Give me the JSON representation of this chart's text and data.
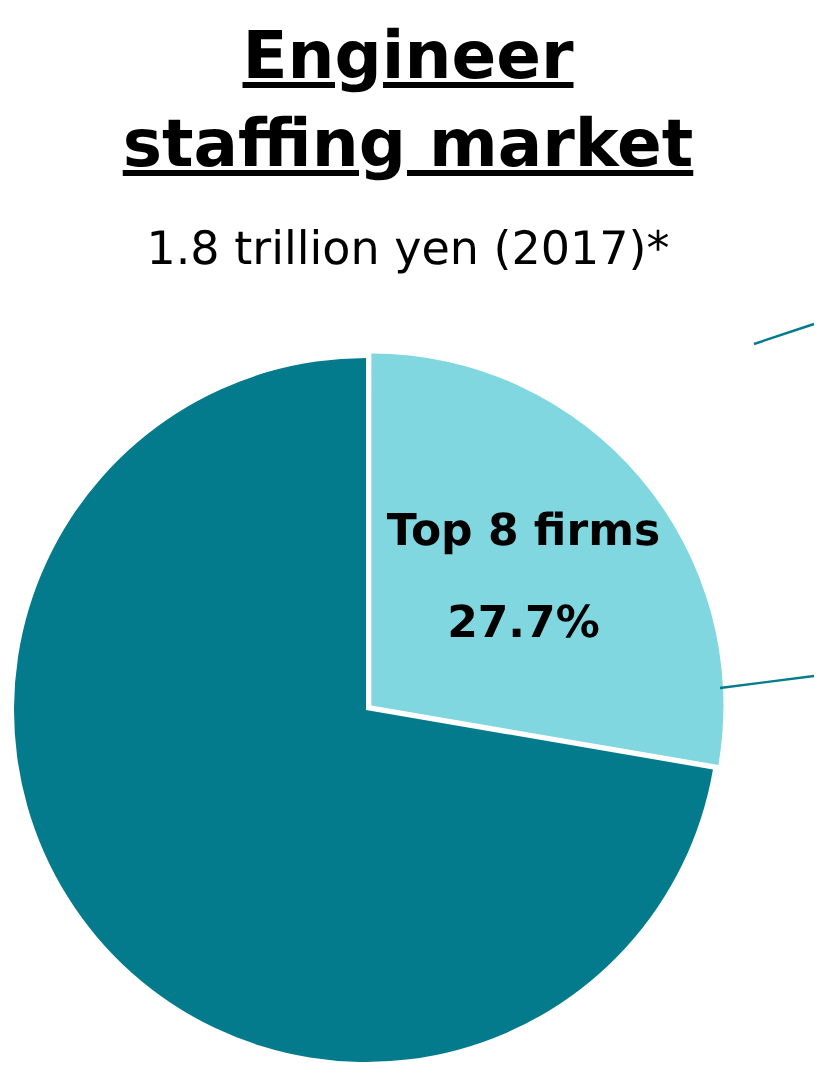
{
  "chart_data": {
    "type": "pie",
    "title": "Engineer staffing market",
    "subtitle": "1.8 trillion yen (2017)*",
    "categories": [
      "Top 8 firms",
      null
    ],
    "values": [
      27.7,
      72.3
    ],
    "colors": [
      "#80d7df",
      "#047b8c"
    ],
    "value_labels": [
      "27.7%",
      null
    ],
    "legend": false
  }
}
